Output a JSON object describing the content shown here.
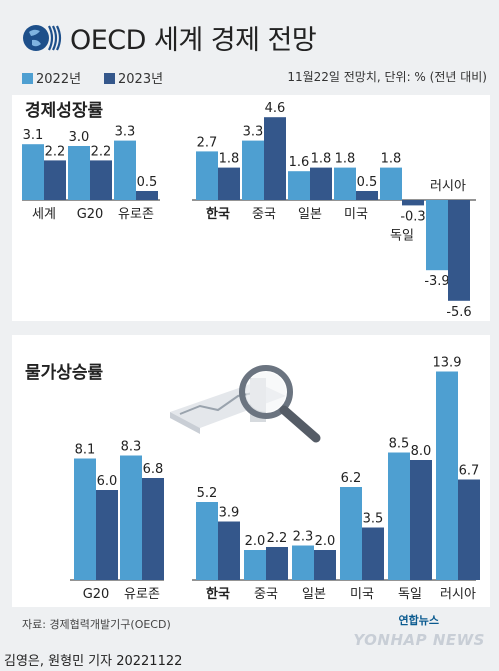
{
  "header": {
    "logo_text": "OECD",
    "title": "OECD 세계 경제 전망",
    "legend": [
      {
        "label": "2022년",
        "color": "#4e9fd1"
      },
      {
        "label": "2023년",
        "color": "#34578b"
      }
    ],
    "note": "11월22일 전망치, 단위: % (전년 대비)"
  },
  "sections": {
    "gdp_title": "경제성장률",
    "cpi_title": "물가상승률"
  },
  "colors": {
    "y2022": "#4e9fd1",
    "y2023": "#34578b",
    "axis": "#555555"
  },
  "chart_data": [
    {
      "type": "bar",
      "title": "경제성장률",
      "group": "global",
      "categories": [
        "세계",
        "G20",
        "유로존"
      ],
      "series": [
        {
          "name": "2022년",
          "values": [
            3.1,
            3.0,
            3.3
          ]
        },
        {
          "name": "2023년",
          "values": [
            2.2,
            2.2,
            0.5
          ]
        }
      ]
    },
    {
      "type": "bar",
      "title": "경제성장률",
      "group": "countries",
      "categories": [
        "한국",
        "중국",
        "일본",
        "미국",
        "독일",
        "러시아"
      ],
      "series": [
        {
          "name": "2022년",
          "values": [
            2.7,
            3.3,
            1.6,
            1.8,
            1.8,
            -3.9
          ]
        },
        {
          "name": "2023년",
          "values": [
            1.8,
            4.6,
            1.8,
            0.5,
            -0.3,
            -5.6
          ]
        }
      ]
    },
    {
      "type": "bar",
      "title": "물가상승률",
      "group": "global",
      "categories": [
        "G20",
        "유로존"
      ],
      "series": [
        {
          "name": "2022년",
          "values": [
            8.1,
            8.3
          ]
        },
        {
          "name": "2023년",
          "values": [
            6.0,
            6.8
          ]
        }
      ]
    },
    {
      "type": "bar",
      "title": "물가상승률",
      "group": "countries",
      "categories": [
        "한국",
        "중국",
        "일본",
        "미국",
        "독일",
        "러시아"
      ],
      "series": [
        {
          "name": "2022년",
          "values": [
            5.2,
            2.0,
            2.3,
            6.2,
            8.5,
            13.9
          ]
        },
        {
          "name": "2023년",
          "values": [
            3.9,
            2.2,
            2.0,
            3.5,
            8.0,
            6.7
          ]
        }
      ]
    }
  ],
  "footer": {
    "source": "자료: 경제협력개발기구(OECD)",
    "credit": "김영은, 원형민 기자  20221122",
    "watermark_small": "연합뉴스",
    "watermark": "YONHAP NEWS"
  }
}
